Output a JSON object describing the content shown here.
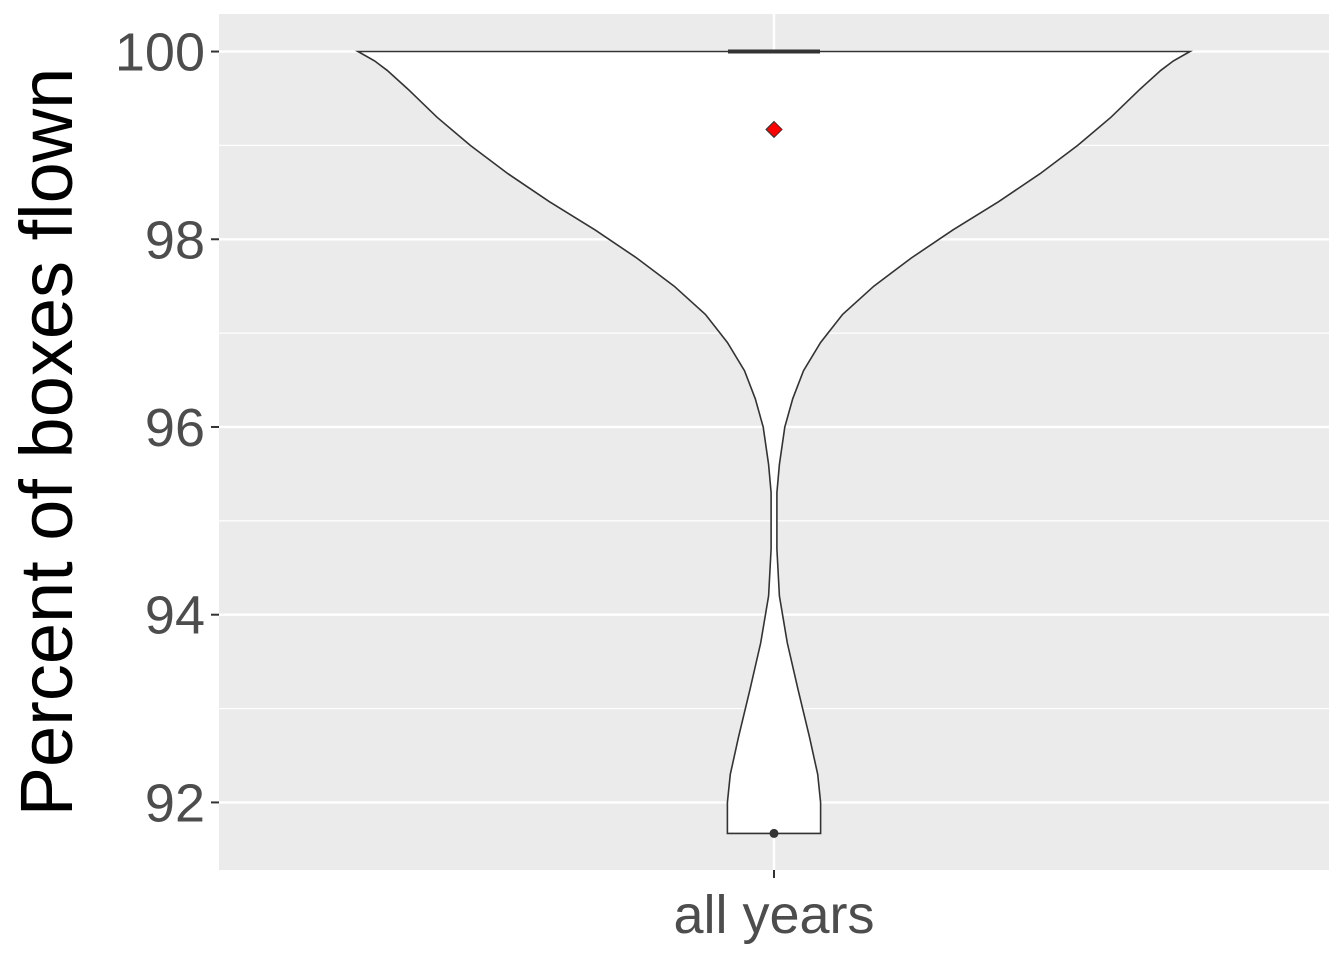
{
  "chart_data": {
    "type": "violin",
    "ylabel": "Percent of boxes flown",
    "xlabel": "",
    "categories": [
      "all years"
    ],
    "ylim": [
      91.28,
      100.4
    ],
    "yticks": [
      92,
      94,
      96,
      98,
      100
    ],
    "grid": true,
    "violin": {
      "category": "all years",
      "range": [
        91.67,
        100
      ],
      "density_profile": [
        [
          91.67,
          0.112
        ],
        [
          92.0,
          0.112
        ],
        [
          92.3,
          0.105
        ],
        [
          92.7,
          0.085
        ],
        [
          93.2,
          0.058
        ],
        [
          93.7,
          0.032
        ],
        [
          94.2,
          0.013
        ],
        [
          94.7,
          0.007
        ],
        [
          95.0,
          0.007
        ],
        [
          95.3,
          0.007
        ],
        [
          95.6,
          0.013
        ],
        [
          96.0,
          0.026
        ],
        [
          96.3,
          0.045
        ],
        [
          96.6,
          0.071
        ],
        [
          96.9,
          0.112
        ],
        [
          97.2,
          0.165
        ],
        [
          97.5,
          0.24
        ],
        [
          97.8,
          0.33
        ],
        [
          98.1,
          0.43
        ],
        [
          98.4,
          0.54
        ],
        [
          98.7,
          0.64
        ],
        [
          99.0,
          0.73
        ],
        [
          99.3,
          0.81
        ],
        [
          99.6,
          0.88
        ],
        [
          99.8,
          0.93
        ],
        [
          99.9,
          0.96
        ],
        [
          100.0,
          1.0
        ]
      ]
    },
    "median": 100,
    "mean": 99.17,
    "mean_color": "#ff0000",
    "outliers": [
      91.67
    ],
    "colors": {
      "panel": "#ebebeb",
      "grid": "#ffffff",
      "violin_fill": "#ffffff",
      "violin_line": "#333333"
    }
  }
}
